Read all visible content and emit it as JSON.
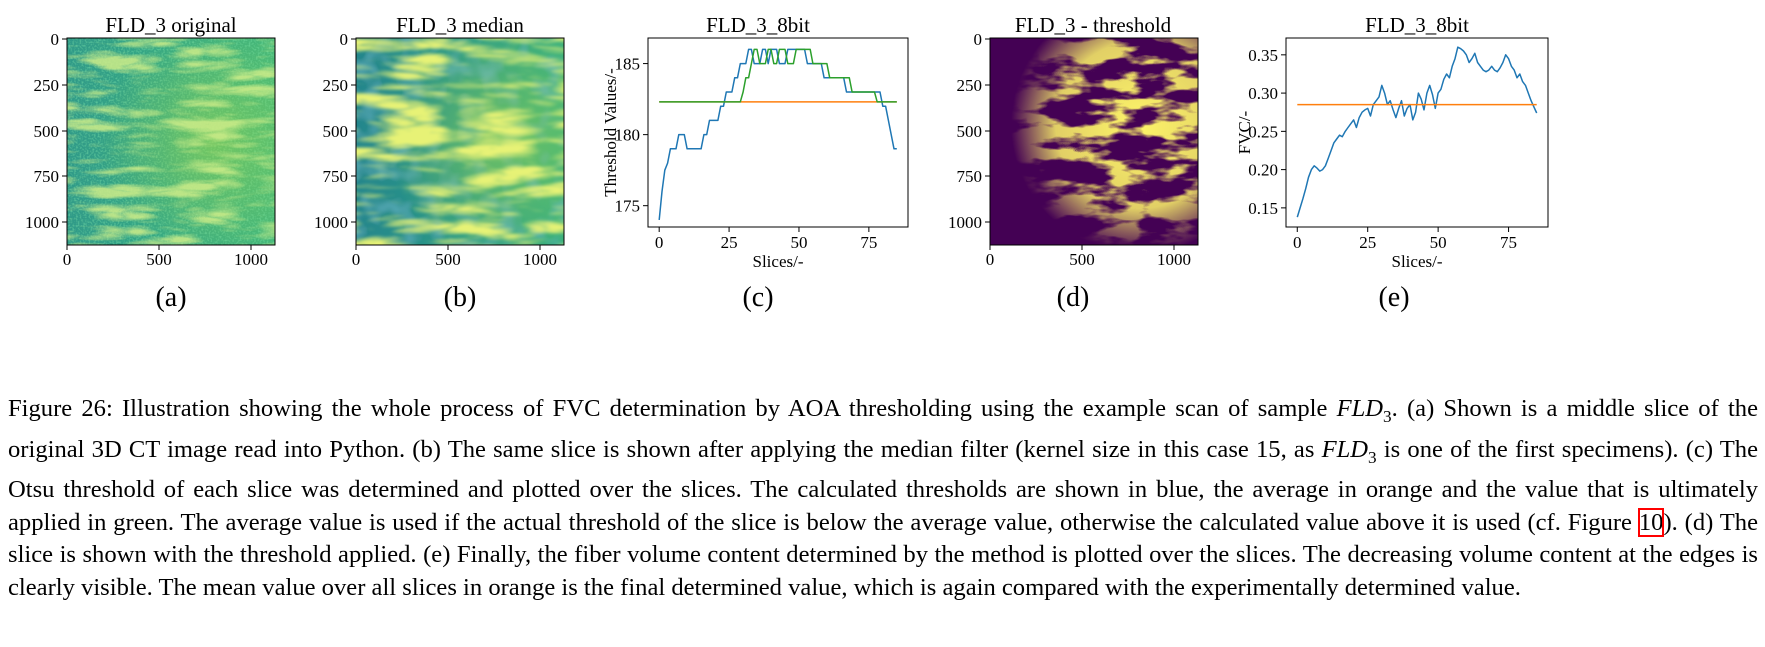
{
  "panels": [
    {
      "id": "a",
      "title": "FLD_3 original",
      "label": "(a)",
      "kind": "image",
      "x_ticks": [
        "0",
        "500",
        "1000"
      ],
      "y_ticks": [
        "0",
        "250",
        "500",
        "750",
        "1000"
      ]
    },
    {
      "id": "b",
      "title": "FLD_3 median",
      "label": "(b)",
      "kind": "image",
      "x_ticks": [
        "0",
        "500",
        "1000"
      ],
      "y_ticks": [
        "0",
        "250",
        "500",
        "750",
        "1000"
      ]
    },
    {
      "id": "c",
      "title": "FLD_3_8bit",
      "label": "(c)",
      "kind": "chart"
    },
    {
      "id": "d",
      "title": "FLD_3 - threshold",
      "label": "(d)",
      "kind": "image",
      "x_ticks": [
        "0",
        "500",
        "1000"
      ],
      "y_ticks": [
        "0",
        "250",
        "500",
        "750",
        "1000"
      ]
    },
    {
      "id": "e",
      "title": "FLD_3_8bit",
      "label": "(e)",
      "kind": "chart"
    }
  ],
  "colors": {
    "viridis_dark": "#440154",
    "viridis_teal": "#1f8f8b",
    "viridis_green": "#35b779",
    "viridis_yellow": "#fde725",
    "calculated": "#1f77b4",
    "average": "#ff7f0e",
    "applied": "#2ca02c"
  },
  "chart_data": [
    {
      "panel": "c",
      "type": "line",
      "title": "FLD_3_8bit",
      "xlabel": "Slices/-",
      "ylabel": "Threshold Values/-",
      "xlim": [
        -4,
        89
      ],
      "ylim": [
        173.5,
        186.8
      ],
      "x_ticks": [
        0,
        25,
        50,
        75
      ],
      "y_ticks": [
        175,
        180,
        185
      ],
      "series": [
        {
          "role": "calculated",
          "color": "#1f77b4",
          "x": [
            0,
            1,
            2,
            3,
            4,
            5,
            6,
            7,
            8,
            9,
            10,
            11,
            12,
            13,
            14,
            15,
            16,
            17,
            18,
            19,
            20,
            21,
            22,
            23,
            24,
            25,
            26,
            27,
            28,
            29,
            30,
            31,
            32,
            33,
            34,
            35,
            36,
            37,
            38,
            39,
            40,
            41,
            42,
            43,
            44,
            45,
            46,
            47,
            48,
            49,
            50,
            51,
            52,
            53,
            54,
            55,
            56,
            57,
            58,
            59,
            60,
            61,
            62,
            63,
            64,
            65,
            66,
            67,
            67.5,
            68,
            69,
            70,
            71,
            72,
            73,
            74,
            75,
            76,
            77,
            78,
            79,
            80,
            81,
            82,
            83,
            84,
            85
          ],
          "y": [
            174,
            176,
            177.5,
            178,
            179,
            179,
            179,
            180,
            180,
            180,
            179,
            179,
            179,
            179,
            179,
            179,
            180,
            180,
            181,
            181,
            181,
            181,
            182,
            182,
            183,
            183,
            183,
            184,
            184,
            185,
            185,
            185,
            186,
            186,
            185,
            185,
            185,
            186,
            186,
            185,
            186,
            186,
            186,
            185,
            185,
            185,
            186,
            186,
            186,
            186,
            186,
            186,
            186,
            185,
            185,
            185,
            185,
            185,
            185,
            184,
            184,
            184,
            184,
            184,
            184,
            184,
            184,
            183,
            183,
            183,
            183,
            183,
            183,
            183,
            183,
            183,
            183,
            183,
            183,
            183,
            183,
            182,
            182,
            181,
            180,
            179,
            179
          ]
        },
        {
          "role": "average",
          "color": "#ff7f0e",
          "x": [
            0,
            85
          ],
          "y": [
            182.3,
            182.3
          ]
        },
        {
          "role": "applied",
          "color": "#2ca02c",
          "x": [
            0,
            29,
            30,
            31,
            32,
            33,
            34,
            35,
            36,
            37,
            38,
            39,
            40,
            41,
            42,
            43,
            44,
            45,
            46,
            47,
            48,
            49,
            50,
            51,
            52,
            53,
            54,
            55,
            56,
            57,
            58,
            59,
            60,
            61,
            62,
            63,
            64,
            65,
            66,
            67,
            68,
            69,
            70,
            71,
            72,
            73,
            74,
            75,
            76,
            77,
            78,
            79,
            80,
            81,
            82,
            83,
            84,
            85
          ],
          "y": [
            182.3,
            182.3,
            183,
            184,
            184,
            185,
            186,
            186,
            185,
            185,
            185,
            186,
            186,
            185,
            185,
            186,
            186,
            186,
            185,
            185,
            185,
            186,
            186,
            186,
            186,
            186,
            186,
            185,
            185,
            185,
            185,
            185,
            185,
            184,
            184,
            184,
            184,
            184,
            184,
            184,
            184,
            183,
            183,
            183,
            183,
            183,
            183,
            183,
            183,
            183,
            182.3,
            182.3,
            182.3,
            182.3,
            182.3,
            182.3,
            182.3,
            182.3
          ]
        }
      ]
    },
    {
      "panel": "e",
      "type": "line",
      "title": "FLD_3_8bit",
      "xlabel": "Slices/-",
      "ylabel": "FVC/-",
      "xlim": [
        -4,
        89
      ],
      "ylim": [
        0.125,
        0.372
      ],
      "x_ticks": [
        0,
        25,
        50,
        75
      ],
      "y_ticks": [
        0.15,
        0.2,
        0.25,
        0.3,
        0.35
      ],
      "series": [
        {
          "role": "fvc",
          "color": "#1f77b4",
          "x": [
            0,
            1,
            2,
            3,
            4,
            5,
            6,
            7,
            8,
            9,
            10,
            11,
            12,
            13,
            14,
            15,
            16,
            17,
            18,
            19,
            20,
            21,
            22,
            23,
            24,
            25,
            26,
            27,
            28,
            29,
            30,
            31,
            32,
            33,
            34,
            35,
            36,
            37,
            38,
            39,
            40,
            41,
            42,
            43,
            44,
            45,
            46,
            47,
            48,
            49,
            50,
            51,
            52,
            53,
            54,
            55,
            56,
            57,
            58,
            59,
            60,
            61,
            62,
            63,
            64,
            65,
            66,
            67,
            68,
            69,
            70,
            71,
            72,
            73,
            74,
            75,
            76,
            77,
            78,
            79,
            80,
            81,
            82,
            83,
            84,
            85
          ],
          "y": [
            0.138,
            0.15,
            0.162,
            0.175,
            0.19,
            0.2,
            0.205,
            0.202,
            0.198,
            0.2,
            0.205,
            0.215,
            0.225,
            0.235,
            0.24,
            0.245,
            0.243,
            0.25,
            0.255,
            0.26,
            0.265,
            0.255,
            0.268,
            0.275,
            0.278,
            0.28,
            0.27,
            0.285,
            0.29,
            0.295,
            0.31,
            0.3,
            0.285,
            0.29,
            0.278,
            0.268,
            0.28,
            0.29,
            0.27,
            0.28,
            0.285,
            0.265,
            0.275,
            0.3,
            0.292,
            0.278,
            0.3,
            0.31,
            0.298,
            0.28,
            0.3,
            0.305,
            0.318,
            0.325,
            0.32,
            0.335,
            0.345,
            0.36,
            0.358,
            0.355,
            0.35,
            0.34,
            0.345,
            0.352,
            0.34,
            0.335,
            0.33,
            0.328,
            0.33,
            0.335,
            0.33,
            0.328,
            0.333,
            0.34,
            0.35,
            0.345,
            0.335,
            0.33,
            0.32,
            0.325,
            0.315,
            0.31,
            0.3,
            0.29,
            0.282,
            0.274
          ]
        },
        {
          "role": "mean",
          "color": "#ff7f0e",
          "x": [
            0,
            85
          ],
          "y": [
            0.285,
            0.285
          ]
        }
      ]
    }
  ],
  "caption": {
    "prefix": "Figure 26: Illustration showing the whole process of FVC determination by AOA thresholding using the example scan of sample ",
    "sample_base": "FLD",
    "sample_sub": "3",
    "part2": ". (a) Shown is a middle slice of the original 3D CT image read into Python. (b) The same slice is shown after applying the median filter (kernel size in this case 15, as ",
    "part3": " is one of the first specimens). (c) The Otsu threshold of each slice was determined and plotted over the slices. The calculated thresholds are shown in blue, the average in orange and the value that is ultimately applied in green. The average value is used if the actual threshold of the slice is below the average value, otherwise the calculated value above it is used (cf. Figure ",
    "figure_ref": "10",
    "part4": "). (d) The slice is shown with the threshold applied. (e) Finally, the fiber volume content determined by the method is plotted over the slices. The decreasing volume content at the edges is clearly visible. The mean value over all slices in orange is the final determined value, which is again compared with the experimentally determined value."
  }
}
